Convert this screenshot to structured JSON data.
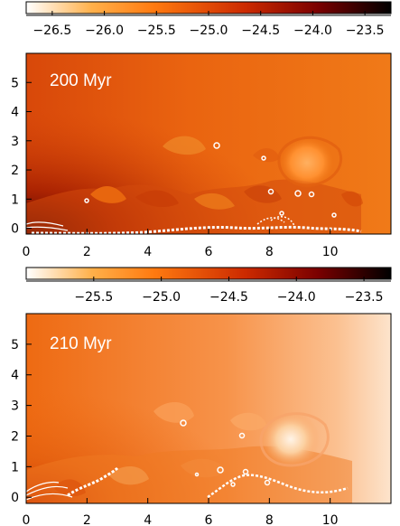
{
  "chart_data": [
    {
      "type": "heatmap",
      "panel_label": "200 Myr",
      "colorbar": {
        "ticks": [
          -26.5,
          -26.0,
          -25.5,
          -25.0,
          -24.5,
          -24.0,
          -23.5
        ],
        "tick_labels": [
          "−26.5",
          "−26.0",
          "−25.5",
          "−25.0",
          "−24.5",
          "−24.0",
          "−23.5"
        ],
        "range": [
          -26.75,
          -23.25
        ],
        "colors": [
          "#ffffff",
          "#ffb04a",
          "#ff7a10",
          "#cc2a00",
          "#7a0000",
          "#000000"
        ]
      },
      "x_ticks": [
        0,
        2,
        4,
        6,
        8,
        10
      ],
      "y_ticks": [
        0,
        1,
        2,
        3,
        4,
        5
      ],
      "xlim": [
        0,
        12
      ],
      "ylim": [
        -0.2,
        6
      ],
      "field": {
        "background_level": -24.6,
        "corner_peak": -23.3
      }
    },
    {
      "type": "heatmap",
      "panel_label": "210 Myr",
      "colorbar": {
        "ticks": [
          -25.5,
          -25.0,
          -24.5,
          -24.0,
          -23.5
        ],
        "tick_labels": [
          "−25.5",
          "−25.0",
          "−24.5",
          "−24.0",
          "−23.5"
        ],
        "range": [
          -26.0,
          -23.3
        ],
        "colors": [
          "#ffffff",
          "#ffb04a",
          "#ff7a10",
          "#cc2a00",
          "#7a0000",
          "#000000"
        ]
      },
      "x_ticks": [
        0,
        2,
        4,
        6,
        8,
        10
      ],
      "y_ticks": [
        0,
        1,
        2,
        3,
        4,
        5
      ],
      "xlim": [
        0,
        12
      ],
      "ylim": [
        -0.2,
        6
      ],
      "field": {
        "background_level": -24.9,
        "corner_peak": -24.3
      }
    }
  ]
}
